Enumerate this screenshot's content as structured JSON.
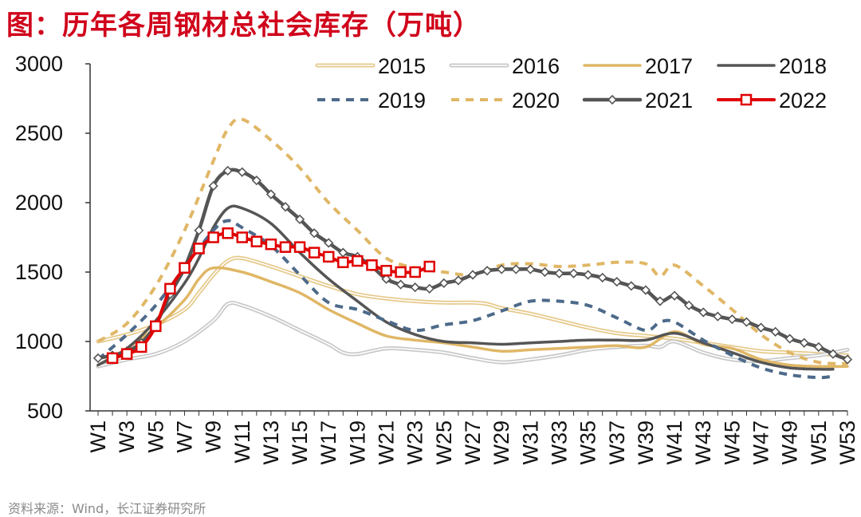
{
  "title": "图：历年各周钢材总社会库存（万吨）",
  "source": "资料来源：Wind，长江证券研究所",
  "chart_data": {
    "type": "line",
    "title": "历年各周钢材总社会库存（万吨）",
    "xlabel": "",
    "ylabel": "",
    "ylim": [
      500,
      3000
    ],
    "yticks": [
      500,
      1000,
      1500,
      2000,
      2500,
      3000
    ],
    "week_count": 53,
    "x_tick_labels": [
      "W1",
      "W3",
      "W5",
      "W7",
      "W9",
      "W11",
      "W13",
      "W15",
      "W17",
      "W19",
      "W21",
      "W23",
      "W25",
      "W27",
      "W29",
      "W31",
      "W33",
      "W35",
      "W37",
      "W39",
      "W41",
      "W43",
      "W45",
      "W47",
      "W49",
      "W51",
      "W53"
    ],
    "legend_position": "top-right",
    "series": [
      {
        "name": "2015",
        "color": "#e6c98a",
        "style": "double",
        "marker": "none",
        "points": [
          [
            1,
            1000
          ],
          [
            3,
            1050
          ],
          [
            5,
            1120
          ],
          [
            7,
            1230
          ],
          [
            8,
            1350
          ],
          [
            9,
            1480
          ],
          [
            10,
            1580
          ],
          [
            11,
            1600
          ],
          [
            13,
            1540
          ],
          [
            15,
            1470
          ],
          [
            17,
            1400
          ],
          [
            19,
            1340
          ],
          [
            21,
            1310
          ],
          [
            23,
            1290
          ],
          [
            25,
            1280
          ],
          [
            27,
            1280
          ],
          [
            28,
            1270
          ],
          [
            29,
            1240
          ],
          [
            31,
            1200
          ],
          [
            33,
            1150
          ],
          [
            35,
            1100
          ],
          [
            37,
            1060
          ],
          [
            39,
            1040
          ],
          [
            41,
            1020
          ],
          [
            43,
            990
          ],
          [
            45,
            960
          ],
          [
            47,
            930
          ],
          [
            49,
            920
          ],
          [
            51,
            910
          ],
          [
            53,
            900
          ]
        ]
      },
      {
        "name": "2016",
        "color": "#c8c8c8",
        "style": "double",
        "marker": "none",
        "points": [
          [
            1,
            820
          ],
          [
            3,
            870
          ],
          [
            5,
            910
          ],
          [
            7,
            1000
          ],
          [
            9,
            1150
          ],
          [
            10,
            1270
          ],
          [
            11,
            1260
          ],
          [
            13,
            1180
          ],
          [
            15,
            1080
          ],
          [
            17,
            980
          ],
          [
            18,
            920
          ],
          [
            19,
            910
          ],
          [
            21,
            950
          ],
          [
            23,
            940
          ],
          [
            25,
            920
          ],
          [
            27,
            880
          ],
          [
            29,
            850
          ],
          [
            31,
            870
          ],
          [
            33,
            900
          ],
          [
            35,
            940
          ],
          [
            37,
            960
          ],
          [
            39,
            970
          ],
          [
            40,
            960
          ],
          [
            41,
            1000
          ],
          [
            43,
            920
          ],
          [
            45,
            870
          ],
          [
            47,
            860
          ],
          [
            49,
            880
          ],
          [
            51,
            900
          ],
          [
            53,
            940
          ]
        ]
      },
      {
        "name": "2017",
        "color": "#e0b766",
        "style": "solid",
        "marker": "none",
        "points": [
          [
            1,
            830
          ],
          [
            3,
            950
          ],
          [
            5,
            1100
          ],
          [
            7,
            1300
          ],
          [
            8,
            1450
          ],
          [
            9,
            1530
          ],
          [
            11,
            1500
          ],
          [
            13,
            1430
          ],
          [
            15,
            1350
          ],
          [
            17,
            1230
          ],
          [
            19,
            1130
          ],
          [
            21,
            1040
          ],
          [
            23,
            1010
          ],
          [
            25,
            990
          ],
          [
            27,
            960
          ],
          [
            29,
            930
          ],
          [
            31,
            940
          ],
          [
            33,
            950
          ],
          [
            35,
            960
          ],
          [
            37,
            970
          ],
          [
            39,
            960
          ],
          [
            41,
            1070
          ],
          [
            43,
            980
          ],
          [
            45,
            950
          ],
          [
            47,
            870
          ],
          [
            49,
            830
          ],
          [
            51,
            820
          ],
          [
            53,
            820
          ]
        ]
      },
      {
        "name": "2018",
        "color": "#555555",
        "style": "solid",
        "marker": "none",
        "points": [
          [
            1,
            830
          ],
          [
            3,
            950
          ],
          [
            5,
            1150
          ],
          [
            7,
            1420
          ],
          [
            8,
            1600
          ],
          [
            9,
            1820
          ],
          [
            10,
            1960
          ],
          [
            11,
            1960
          ],
          [
            13,
            1850
          ],
          [
            15,
            1640
          ],
          [
            17,
            1450
          ],
          [
            19,
            1290
          ],
          [
            21,
            1140
          ],
          [
            23,
            1050
          ],
          [
            25,
            1000
          ],
          [
            27,
            990
          ],
          [
            29,
            980
          ],
          [
            31,
            990
          ],
          [
            33,
            1000
          ],
          [
            35,
            1010
          ],
          [
            37,
            1010
          ],
          [
            39,
            1010
          ],
          [
            41,
            1060
          ],
          [
            43,
            990
          ],
          [
            45,
            920
          ],
          [
            47,
            850
          ],
          [
            49,
            810
          ],
          [
            51,
            800
          ],
          [
            52,
            800
          ]
        ]
      },
      {
        "name": "2019",
        "color": "#4d6a8a",
        "style": "dashed",
        "marker": "none",
        "points": [
          [
            1,
            870
          ],
          [
            3,
            1050
          ],
          [
            5,
            1260
          ],
          [
            7,
            1530
          ],
          [
            9,
            1800
          ],
          [
            10,
            1870
          ],
          [
            11,
            1820
          ],
          [
            13,
            1690
          ],
          [
            15,
            1480
          ],
          [
            17,
            1280
          ],
          [
            19,
            1230
          ],
          [
            21,
            1150
          ],
          [
            23,
            1080
          ],
          [
            25,
            1120
          ],
          [
            27,
            1150
          ],
          [
            29,
            1220
          ],
          [
            31,
            1290
          ],
          [
            33,
            1290
          ],
          [
            35,
            1260
          ],
          [
            37,
            1170
          ],
          [
            39,
            1080
          ],
          [
            40,
            1140
          ],
          [
            41,
            1140
          ],
          [
            43,
            1010
          ],
          [
            45,
            900
          ],
          [
            47,
            810
          ],
          [
            49,
            760
          ],
          [
            51,
            740
          ],
          [
            52,
            750
          ]
        ]
      },
      {
        "name": "2020",
        "color": "#e0b766",
        "style": "dashed",
        "marker": "none",
        "points": [
          [
            1,
            1000
          ],
          [
            3,
            1130
          ],
          [
            5,
            1400
          ],
          [
            7,
            1800
          ],
          [
            9,
            2300
          ],
          [
            10,
            2530
          ],
          [
            11,
            2600
          ],
          [
            13,
            2450
          ],
          [
            15,
            2250
          ],
          [
            17,
            2000
          ],
          [
            19,
            1800
          ],
          [
            21,
            1600
          ],
          [
            23,
            1530
          ],
          [
            25,
            1500
          ],
          [
            27,
            1480
          ],
          [
            29,
            1550
          ],
          [
            31,
            1560
          ],
          [
            33,
            1540
          ],
          [
            35,
            1550
          ],
          [
            37,
            1570
          ],
          [
            39,
            1560
          ],
          [
            40,
            1470
          ],
          [
            41,
            1550
          ],
          [
            43,
            1400
          ],
          [
            45,
            1230
          ],
          [
            47,
            1050
          ],
          [
            49,
            920
          ],
          [
            51,
            850
          ],
          [
            53,
            840
          ]
        ]
      },
      {
        "name": "2021",
        "color": "#555555",
        "style": "solid",
        "marker": "diamond",
        "points": [
          [
            1,
            880
          ],
          [
            2,
            900
          ],
          [
            3,
            930
          ],
          [
            4,
            990
          ],
          [
            5,
            1120
          ],
          [
            6,
            1340
          ],
          [
            7,
            1530
          ],
          [
            8,
            1800
          ],
          [
            9,
            2120
          ],
          [
            10,
            2230
          ],
          [
            11,
            2220
          ],
          [
            12,
            2160
          ],
          [
            13,
            2060
          ],
          [
            14,
            1970
          ],
          [
            15,
            1880
          ],
          [
            16,
            1780
          ],
          [
            17,
            1710
          ],
          [
            18,
            1640
          ],
          [
            19,
            1610
          ],
          [
            20,
            1540
          ],
          [
            21,
            1450
          ],
          [
            22,
            1410
          ],
          [
            23,
            1390
          ],
          [
            24,
            1380
          ],
          [
            25,
            1420
          ],
          [
            26,
            1440
          ],
          [
            27,
            1480
          ],
          [
            28,
            1510
          ],
          [
            29,
            1520
          ],
          [
            30,
            1520
          ],
          [
            31,
            1520
          ],
          [
            32,
            1500
          ],
          [
            33,
            1490
          ],
          [
            34,
            1490
          ],
          [
            35,
            1480
          ],
          [
            36,
            1460
          ],
          [
            37,
            1430
          ],
          [
            38,
            1400
          ],
          [
            39,
            1370
          ],
          [
            40,
            1290
          ],
          [
            41,
            1330
          ],
          [
            42,
            1260
          ],
          [
            43,
            1210
          ],
          [
            44,
            1180
          ],
          [
            45,
            1160
          ],
          [
            46,
            1140
          ],
          [
            47,
            1100
          ],
          [
            48,
            1070
          ],
          [
            49,
            1020
          ],
          [
            50,
            990
          ],
          [
            51,
            960
          ],
          [
            52,
            910
          ],
          [
            53,
            870
          ]
        ]
      },
      {
        "name": "2022",
        "color": "#e00000",
        "style": "solid",
        "marker": "square",
        "points": [
          [
            2,
            880
          ],
          [
            3,
            910
          ],
          [
            4,
            960
          ],
          [
            5,
            1110
          ],
          [
            6,
            1380
          ],
          [
            7,
            1530
          ],
          [
            8,
            1670
          ],
          [
            9,
            1750
          ],
          [
            10,
            1780
          ],
          [
            11,
            1750
          ],
          [
            12,
            1720
          ],
          [
            13,
            1700
          ],
          [
            14,
            1680
          ],
          [
            15,
            1680
          ],
          [
            16,
            1640
          ],
          [
            17,
            1610
          ],
          [
            18,
            1570
          ],
          [
            19,
            1580
          ],
          [
            20,
            1550
          ],
          [
            21,
            1510
          ],
          [
            22,
            1500
          ],
          [
            23,
            1500
          ],
          [
            24,
            1540
          ]
        ]
      }
    ]
  }
}
